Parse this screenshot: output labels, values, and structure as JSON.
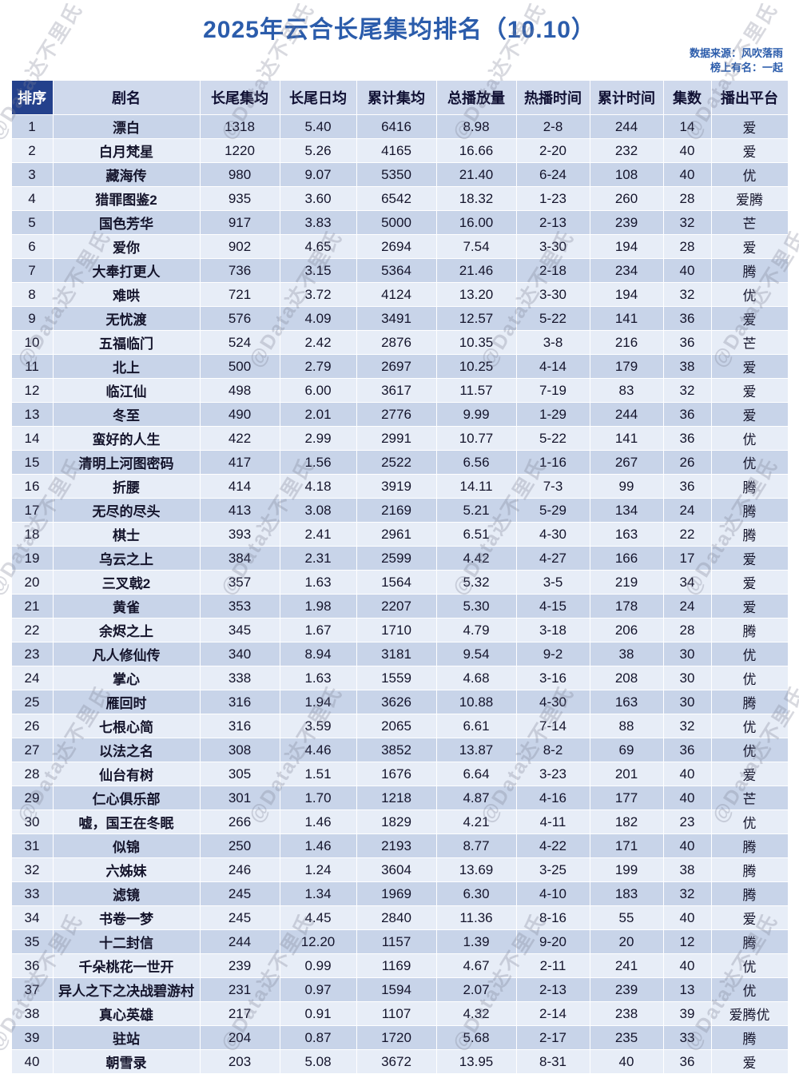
{
  "title": "2025年云合长尾集均排名（10.10）",
  "source": {
    "line1": "数据来源：风吹落雨",
    "line2": "榜上有名：一起"
  },
  "watermark": "@Data达不里氏",
  "colors": {
    "title_blue": "#2b5cab",
    "header_bg": "#cfd9ec",
    "rank_header_bg": "#24418c",
    "row_odd": "#c8d4e9",
    "row_even": "#e7edf7",
    "grid_line": "#ffffff"
  },
  "chart_data": {
    "type": "table",
    "title": "2025年云合长尾集均排名（10.10）",
    "columns": [
      "排序",
      "剧名",
      "长尾集均",
      "长尾日均",
      "累计集均",
      "总播放量",
      "热播时间",
      "累计时间",
      "集数",
      "播出平台"
    ],
    "column_keys": [
      "rank",
      "title",
      "longtail_avg",
      "longtail_daily",
      "cumulative_avg",
      "total_plays",
      "hot_period",
      "cumulative_days",
      "episodes",
      "platform"
    ],
    "rows": [
      [
        "1",
        "漂白",
        "1318",
        "5.40",
        "6416",
        "8.98",
        "2-8",
        "244",
        "14",
        "爱"
      ],
      [
        "2",
        "白月梵星",
        "1220",
        "5.26",
        "4165",
        "16.66",
        "2-20",
        "232",
        "40",
        "爱"
      ],
      [
        "3",
        "藏海传",
        "980",
        "9.07",
        "5350",
        "21.40",
        "6-24",
        "108",
        "40",
        "优"
      ],
      [
        "4",
        "猎罪图鉴2",
        "935",
        "3.60",
        "6542",
        "18.32",
        "1-23",
        "260",
        "28",
        "爱腾"
      ],
      [
        "5",
        "国色芳华",
        "917",
        "3.83",
        "5000",
        "16.00",
        "2-13",
        "239",
        "32",
        "芒"
      ],
      [
        "6",
        "爱你",
        "902",
        "4.65",
        "2694",
        "7.54",
        "3-30",
        "194",
        "28",
        "爱"
      ],
      [
        "7",
        "大奉打更人",
        "736",
        "3.15",
        "5364",
        "21.46",
        "2-18",
        "234",
        "40",
        "腾"
      ],
      [
        "8",
        "难哄",
        "721",
        "3.72",
        "4124",
        "13.20",
        "3-30",
        "194",
        "32",
        "优"
      ],
      [
        "9",
        "无忧渡",
        "576",
        "4.09",
        "3491",
        "12.57",
        "5-22",
        "141",
        "36",
        "爱"
      ],
      [
        "10",
        "五福临门",
        "524",
        "2.42",
        "2876",
        "10.35",
        "3-8",
        "216",
        "36",
        "芒"
      ],
      [
        "11",
        "北上",
        "500",
        "2.79",
        "2697",
        "10.25",
        "4-14",
        "179",
        "38",
        "爱"
      ],
      [
        "12",
        "临江仙",
        "498",
        "6.00",
        "3617",
        "11.57",
        "7-19",
        "83",
        "32",
        "爱"
      ],
      [
        "13",
        "冬至",
        "490",
        "2.01",
        "2776",
        "9.99",
        "1-29",
        "244",
        "36",
        "爱"
      ],
      [
        "14",
        "蛮好的人生",
        "422",
        "2.99",
        "2991",
        "10.77",
        "5-22",
        "141",
        "36",
        "优"
      ],
      [
        "15",
        "清明上河图密码",
        "417",
        "1.56",
        "2522",
        "6.56",
        "1-16",
        "267",
        "26",
        "优"
      ],
      [
        "16",
        "折腰",
        "414",
        "4.18",
        "3919",
        "14.11",
        "7-3",
        "99",
        "36",
        "腾"
      ],
      [
        "17",
        "无尽的尽头",
        "413",
        "3.08",
        "2169",
        "5.21",
        "5-29",
        "134",
        "24",
        "腾"
      ],
      [
        "18",
        "棋士",
        "393",
        "2.41",
        "2961",
        "6.51",
        "4-30",
        "163",
        "22",
        "腾"
      ],
      [
        "19",
        "乌云之上",
        "384",
        "2.31",
        "2599",
        "4.42",
        "4-27",
        "166",
        "17",
        "爱"
      ],
      [
        "20",
        "三叉戟2",
        "357",
        "1.63",
        "1564",
        "5.32",
        "3-5",
        "219",
        "34",
        "爱"
      ],
      [
        "21",
        "黄雀",
        "353",
        "1.98",
        "2207",
        "5.30",
        "4-15",
        "178",
        "24",
        "爱"
      ],
      [
        "22",
        "余烬之上",
        "345",
        "1.67",
        "1710",
        "4.79",
        "3-18",
        "206",
        "28",
        "腾"
      ],
      [
        "23",
        "凡人修仙传",
        "340",
        "8.94",
        "3181",
        "9.54",
        "9-2",
        "38",
        "30",
        "优"
      ],
      [
        "24",
        "掌心",
        "338",
        "1.63",
        "1559",
        "4.68",
        "3-16",
        "208",
        "30",
        "优"
      ],
      [
        "25",
        "雁回时",
        "316",
        "1.94",
        "3626",
        "10.88",
        "4-30",
        "163",
        "30",
        "腾"
      ],
      [
        "26",
        "七根心简",
        "316",
        "3.59",
        "2065",
        "6.61",
        "7-14",
        "88",
        "32",
        "优"
      ],
      [
        "27",
        "以法之名",
        "308",
        "4.46",
        "3852",
        "13.87",
        "8-2",
        "69",
        "36",
        "优"
      ],
      [
        "28",
        "仙台有树",
        "305",
        "1.51",
        "1676",
        "6.64",
        "3-23",
        "201",
        "40",
        "爱"
      ],
      [
        "29",
        "仁心俱乐部",
        "301",
        "1.70",
        "1218",
        "4.87",
        "4-16",
        "177",
        "40",
        "芒"
      ],
      [
        "30",
        "嘘，国王在冬眠",
        "266",
        "1.46",
        "1829",
        "4.21",
        "4-11",
        "182",
        "23",
        "优"
      ],
      [
        "31",
        "似锦",
        "250",
        "1.46",
        "2193",
        "8.77",
        "4-22",
        "171",
        "40",
        "腾"
      ],
      [
        "32",
        "六姊妹",
        "246",
        "1.24",
        "3604",
        "13.69",
        "3-25",
        "199",
        "38",
        "腾"
      ],
      [
        "33",
        "滤镜",
        "245",
        "1.34",
        "1969",
        "6.30",
        "4-10",
        "183",
        "32",
        "腾"
      ],
      [
        "34",
        "书卷一梦",
        "245",
        "4.45",
        "2840",
        "11.36",
        "8-16",
        "55",
        "40",
        "爱"
      ],
      [
        "35",
        "十二封信",
        "244",
        "12.20",
        "1157",
        "1.39",
        "9-20",
        "20",
        "12",
        "腾"
      ],
      [
        "36",
        "千朵桃花一世开",
        "239",
        "0.99",
        "1169",
        "4.67",
        "2-11",
        "241",
        "40",
        "优"
      ],
      [
        "37",
        "异人之下之决战碧游村",
        "231",
        "0.97",
        "1594",
        "2.07",
        "2-13",
        "239",
        "13",
        "优"
      ],
      [
        "38",
        "真心英雄",
        "217",
        "0.91",
        "1107",
        "4.32",
        "2-14",
        "238",
        "39",
        "爱腾优"
      ],
      [
        "39",
        "驻站",
        "204",
        "0.87",
        "1720",
        "5.68",
        "2-17",
        "235",
        "33",
        "腾"
      ],
      [
        "40",
        "朝雪录",
        "203",
        "5.08",
        "3672",
        "13.95",
        "8-31",
        "40",
        "36",
        "爱"
      ]
    ]
  }
}
